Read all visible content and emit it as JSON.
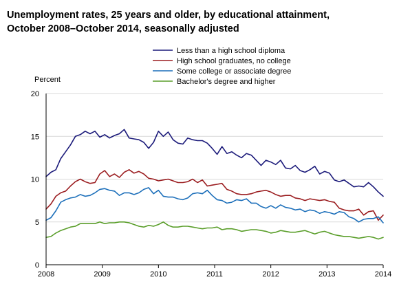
{
  "chart_data": {
    "type": "line",
    "title": "Unemployment rates, 25 years and older, by educational attainment,\nOctober 2008–October 2014, seasonally adjusted",
    "ylabel": "Percent",
    "xlabel": "",
    "ylim": [
      0,
      20
    ],
    "y_ticks": [
      "0",
      "5",
      "10",
      "15",
      "20"
    ],
    "x_ticks": [
      "2008",
      "2009",
      "2010",
      "2011",
      "2012",
      "2013",
      "2014"
    ],
    "x_start": "2008-01",
    "x_end": "2014-01",
    "grid": "horizontal",
    "legend_position": "top",
    "series": [
      {
        "name": "Less than a high school diploma",
        "color": "#1b1a7a",
        "values": [
          10.3,
          10.8,
          11.1,
          12.4,
          13.2,
          14.0,
          15.0,
          15.2,
          15.6,
          15.3,
          15.6,
          14.9,
          15.2,
          14.8,
          15.1,
          15.3,
          15.8,
          14.8,
          14.7,
          14.6,
          14.3,
          13.6,
          14.3,
          15.6,
          15.0,
          15.5,
          14.6,
          14.2,
          14.1,
          14.8,
          14.6,
          14.5,
          14.5,
          14.2,
          13.6,
          12.9,
          13.8,
          13.0,
          13.2,
          12.8,
          12.5,
          13.0,
          12.8,
          12.2,
          11.6,
          12.2,
          12.0,
          11.7,
          12.2,
          11.3,
          11.2,
          11.6,
          11.0,
          10.8,
          11.1,
          11.5,
          10.6,
          10.9,
          10.7,
          9.9,
          9.7,
          9.9,
          9.5,
          9.1,
          9.2,
          9.1,
          9.6,
          9.1,
          8.5,
          8.0
        ]
      },
      {
        "name": "High school graduates, no college",
        "color": "#9b1d20",
        "values": [
          6.5,
          7.1,
          8.0,
          8.4,
          8.6,
          9.2,
          9.7,
          10.0,
          9.7,
          9.5,
          9.6,
          10.6,
          11.0,
          10.3,
          10.6,
          10.2,
          10.8,
          11.1,
          10.7,
          10.9,
          10.6,
          10.1,
          10.0,
          9.8,
          9.9,
          10.0,
          9.8,
          9.6,
          9.6,
          9.7,
          10.0,
          9.6,
          9.9,
          9.2,
          9.3,
          9.4,
          9.5,
          8.8,
          8.6,
          8.3,
          8.2,
          8.2,
          8.3,
          8.5,
          8.6,
          8.7,
          8.5,
          8.2,
          8.0,
          8.1,
          8.1,
          7.8,
          7.7,
          7.5,
          7.7,
          7.6,
          7.5,
          7.6,
          7.4,
          7.3,
          6.6,
          6.4,
          6.3,
          6.3,
          6.5,
          5.8,
          6.2,
          6.3,
          5.2,
          5.8
        ]
      },
      {
        "name": "Some college or associate degree",
        "color": "#1c6fba",
        "values": [
          5.2,
          5.5,
          6.3,
          7.3,
          7.6,
          7.8,
          7.9,
          8.2,
          8.0,
          8.1,
          8.4,
          8.8,
          8.9,
          8.7,
          8.6,
          8.1,
          8.4,
          8.4,
          8.2,
          8.4,
          8.8,
          9.0,
          8.3,
          8.7,
          8.0,
          7.9,
          7.9,
          7.7,
          7.6,
          7.8,
          8.3,
          8.4,
          8.3,
          8.7,
          8.1,
          7.6,
          7.5,
          7.2,
          7.3,
          7.6,
          7.5,
          7.7,
          7.2,
          7.2,
          6.8,
          6.6,
          6.9,
          6.6,
          7.0,
          6.7,
          6.6,
          6.4,
          6.5,
          6.2,
          6.4,
          6.3,
          6.0,
          6.2,
          6.1,
          5.9,
          6.2,
          6.1,
          5.6,
          5.4,
          5.0,
          5.3,
          5.4,
          5.4,
          5.6,
          4.9
        ]
      },
      {
        "name": "Bachelor's degree and higher",
        "color": "#5a9e2a",
        "values": [
          3.2,
          3.3,
          3.7,
          4.0,
          4.2,
          4.4,
          4.5,
          4.8,
          4.8,
          4.8,
          4.8,
          5.0,
          4.8,
          4.9,
          4.9,
          5.0,
          5.0,
          4.9,
          4.7,
          4.5,
          4.4,
          4.6,
          4.5,
          4.7,
          5.0,
          4.6,
          4.4,
          4.4,
          4.5,
          4.5,
          4.4,
          4.3,
          4.2,
          4.3,
          4.3,
          4.4,
          4.1,
          4.2,
          4.2,
          4.1,
          3.9,
          4.0,
          4.1,
          4.1,
          4.0,
          3.9,
          3.7,
          3.8,
          4.0,
          3.9,
          3.8,
          3.8,
          3.9,
          4.0,
          3.8,
          3.6,
          3.8,
          3.9,
          3.7,
          3.5,
          3.4,
          3.3,
          3.3,
          3.2,
          3.1,
          3.2,
          3.3,
          3.2,
          3.0,
          3.2
        ]
      }
    ]
  }
}
